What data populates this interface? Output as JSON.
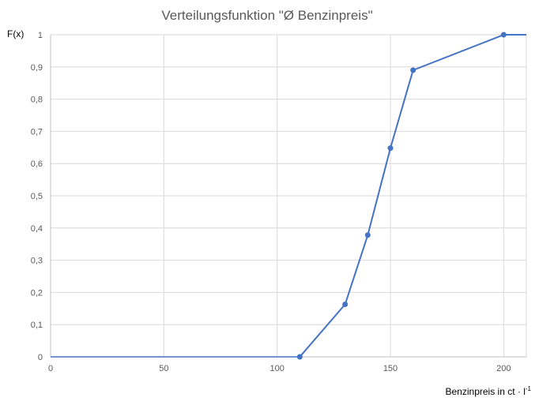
{
  "chart_data": {
    "type": "line",
    "title": "Verteilungsfunktion \"Ø Benzinpreis\"",
    "xlabel": "Benzinpreis in ct · l",
    "xlabel_superscript": "-1",
    "ylabel": "F(x)",
    "xlim": [
      0,
      210
    ],
    "ylim": [
      0,
      1
    ],
    "x_ticks": [
      0,
      50,
      100,
      150,
      200
    ],
    "y_ticks": [
      "0",
      "0,1",
      "0,2",
      "0,3",
      "0,4",
      "0,5",
      "0,6",
      "0,7",
      "0,8",
      "0,9",
      "1"
    ],
    "grid": true,
    "color": "#4472c4",
    "series": [
      {
        "x": [
          110,
          130,
          140,
          150,
          160,
          200
        ],
        "y": [
          0,
          0.163,
          0.378,
          0.648,
          0.89,
          1.0
        ],
        "leading_flat": {
          "x": [
            0,
            110
          ],
          "y": [
            0,
            0
          ]
        },
        "trailing_flat": {
          "x": [
            200,
            210
          ],
          "y": [
            1,
            1
          ]
        }
      }
    ]
  }
}
